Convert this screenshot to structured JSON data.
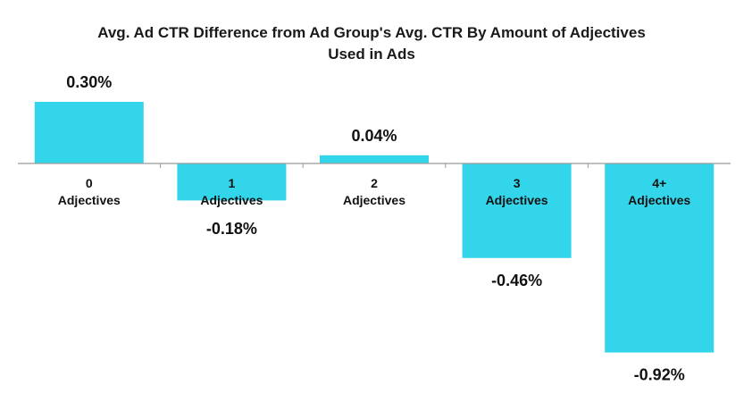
{
  "chart_data": {
    "type": "bar",
    "title_line1": "Avg. Ad CTR Difference from Ad Group's Avg. CTR By Amount of Adjectives",
    "title_line2": "Used in Ads",
    "categories": [
      {
        "number": "0",
        "word": "Adjectives"
      },
      {
        "number": "1",
        "word": "Adjectives"
      },
      {
        "number": "2",
        "word": "Adjectives"
      },
      {
        "number": "3",
        "word": "Adjectives"
      },
      {
        "number": "4+",
        "word": "Adjectives"
      }
    ],
    "values": [
      0.3,
      -0.18,
      0.04,
      -0.46,
      -0.92
    ],
    "data_labels": [
      "0.30%",
      "-0.18%",
      "0.04%",
      "-0.46%",
      "-0.92%"
    ],
    "bar_color": "#33d5eb",
    "axis_color": "#9a9a9a",
    "grid": false,
    "legend": "none"
  }
}
